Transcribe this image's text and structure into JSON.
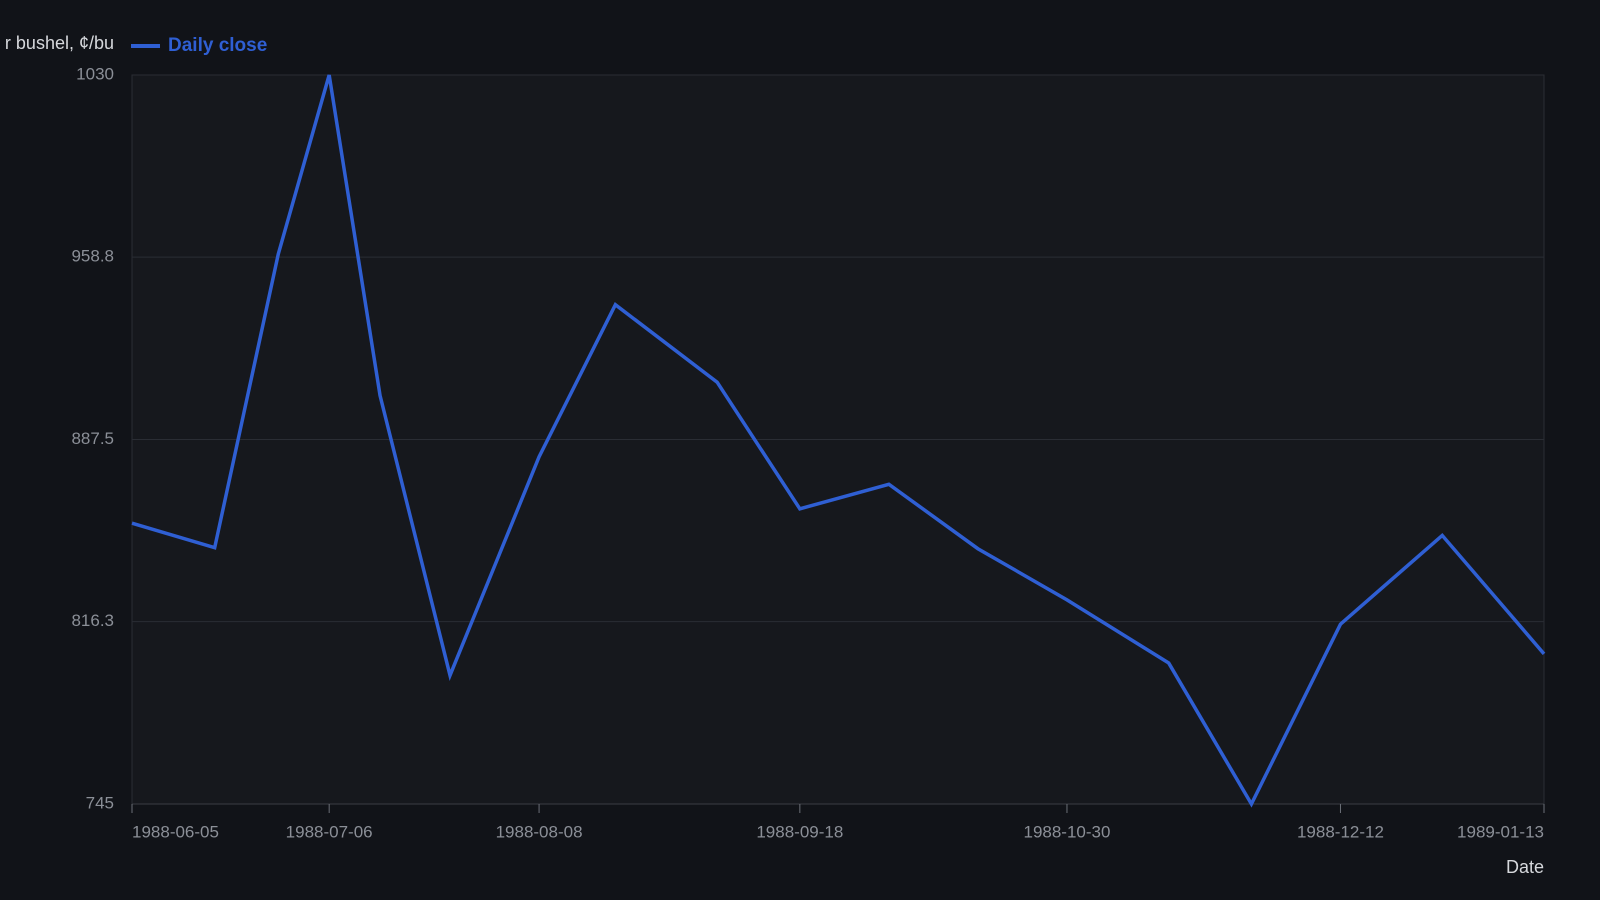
{
  "chart_data": {
    "type": "line",
    "y_label": "r bushel, ¢/bu",
    "x_label": "Date",
    "x": [
      "1988-06-05",
      "1988-06-18",
      "1988-06-28",
      "1988-07-06",
      "1988-07-14",
      "1988-07-25",
      "1988-08-08",
      "1988-08-20",
      "1988-09-05",
      "1988-09-18",
      "1988-10-02",
      "1988-10-16",
      "1988-10-30",
      "1988-11-15",
      "1988-11-28",
      "1988-12-12",
      "1988-12-28",
      "1989-01-13"
    ],
    "series": [
      {
        "name": "Daily close",
        "color": "#2f5fd3",
        "values": [
          854.8,
          845.2,
          960,
          1030,
          904.7,
          795.3,
          880.7,
          940.2,
          909.9,
          860.4,
          870,
          844.8,
          824.8,
          800.1,
          745,
          815.3,
          850,
          803.7
        ]
      }
    ],
    "xlim": [
      "1988-06-05",
      "1989-01-13"
    ],
    "xticks": [
      "1988-06-05",
      "1988-07-06",
      "1988-08-08",
      "1988-09-18",
      "1988-10-30",
      "1988-12-12",
      "1989-01-13"
    ],
    "ylim": [
      745,
      1030
    ],
    "yticks": [
      745,
      816.3,
      887.5,
      958.8,
      1030
    ],
    "grid": true
  }
}
